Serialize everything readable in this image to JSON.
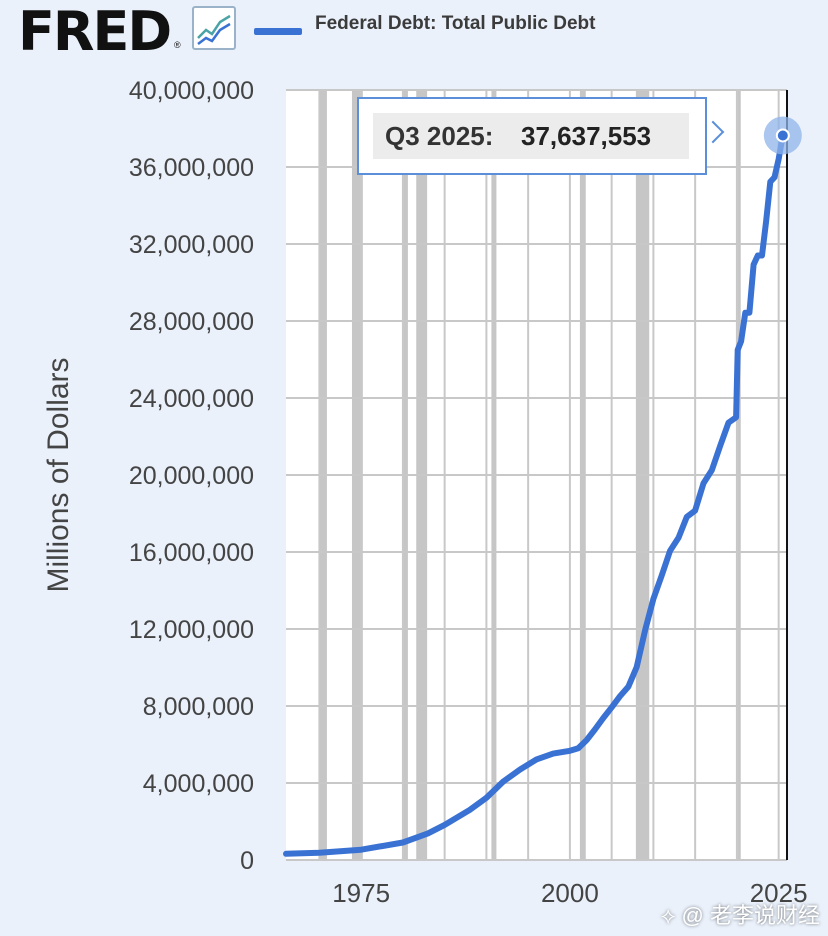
{
  "header": {
    "logo_text": "FRED",
    "logo_icon": "line-chart-icon",
    "legend_label": "Federal Debt: Total Public Debt"
  },
  "tooltip": {
    "date": "Q3 2025:",
    "value": "37,637,553"
  },
  "watermark": "老李说财经",
  "colors": {
    "series": "#3a72d4",
    "recession": "#c6c6c6",
    "plot_background": "#ffffff",
    "page_background": "#eaf1fb"
  },
  "chart_data": {
    "type": "line",
    "title": "",
    "xlabel": "",
    "ylabel": "Millions of Dollars",
    "xlim": [
      1966.0,
      2026.0
    ],
    "ylim": [
      0,
      40000000
    ],
    "yticks": [
      0,
      4000000,
      8000000,
      12000000,
      16000000,
      20000000,
      24000000,
      28000000,
      32000000,
      36000000,
      40000000
    ],
    "ytick_labels": [
      "0",
      "4,000,000",
      "8,000,000",
      "12,000,000",
      "16,000,000",
      "20,000,000",
      "24,000,000",
      "28,000,000",
      "32,000,000",
      "36,000,000",
      "40,000,000"
    ],
    "xticks": [
      1975,
      2000,
      2025
    ],
    "xtick_labels": [
      "1975",
      "2000",
      "2025"
    ],
    "grid": true,
    "recessions": [
      [
        1969.9,
        1970.9
      ],
      [
        1973.9,
        1975.2
      ],
      [
        1980.0,
        1980.6
      ],
      [
        1981.6,
        1982.9
      ],
      [
        1990.6,
        1991.2
      ],
      [
        2001.2,
        2001.9
      ],
      [
        2007.9,
        2009.5
      ],
      [
        2020.1,
        2020.4
      ]
    ],
    "series": [
      {
        "name": "Federal Debt: Total Public Debt",
        "x": [
          1966,
          1970,
          1975,
          1980,
          1983,
          1985,
          1988,
          1990,
          1992,
          1994,
          1996,
          1998,
          2000,
          2001,
          2002,
          2003,
          2004,
          2005,
          2006,
          2007,
          2008,
          2009,
          2010,
          2011,
          2012,
          2013,
          2014,
          2015,
          2016,
          2017,
          2018,
          2019,
          2019.9,
          2020.1,
          2020.5,
          2021,
          2021.5,
          2022,
          2022.5,
          2023,
          2023.5,
          2024,
          2024.5,
          2025,
          2025.5
        ],
        "values": [
          320000,
          380000,
          533000,
          908000,
          1380000,
          1823000,
          2602000,
          3233000,
          4065000,
          4693000,
          5225000,
          5526000,
          5674000,
          5807000,
          6228000,
          6783000,
          7379000,
          7933000,
          8507000,
          9008000,
          10025000,
          11910000,
          13562000,
          14790000,
          16066000,
          16738000,
          17824000,
          18151000,
          19573000,
          20245000,
          21516000,
          22719000,
          23000000,
          26500000,
          26945000,
          28429000,
          28429000,
          30929000,
          31400000,
          31400000,
          33167000,
          35230000,
          35464000,
          36400000,
          37637553
        ]
      }
    ]
  }
}
